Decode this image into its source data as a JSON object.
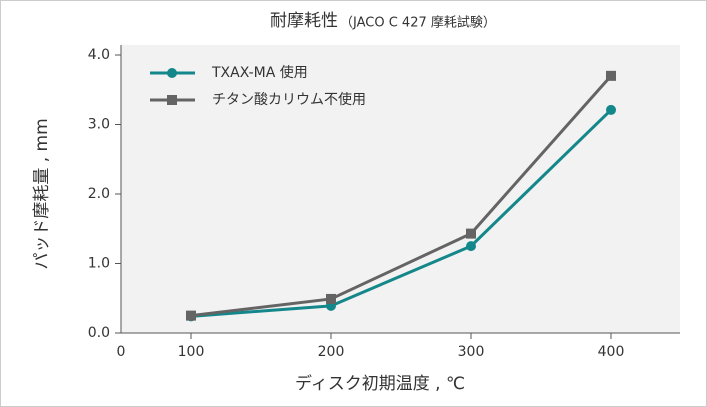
{
  "chart_data": {
    "type": "line",
    "title": "耐摩耗性",
    "subtitle": "（JACO C 427 摩耗試験）",
    "x_label": "ディスク初期温度 , ℃",
    "y_label": "パッド摩耗量 , mm",
    "x_origin_label": "0",
    "categories": [
      "100",
      "200",
      "300",
      "400"
    ],
    "series": [
      {
        "name": "TXAX-MA 使用",
        "color": "#14878a",
        "marker": "circle",
        "values": [
          0.24,
          0.39,
          1.25,
          3.21
        ]
      },
      {
        "name": "チタン酸カリウム不使用",
        "color": "#646464",
        "marker": "square",
        "values": [
          0.25,
          0.49,
          1.43,
          3.7
        ]
      }
    ],
    "ylim": [
      0,
      4
    ],
    "yticks": [
      {
        "value": 0,
        "label": "0.0"
      },
      {
        "value": 1,
        "label": "1.0"
      },
      {
        "value": 2,
        "label": "2.0"
      },
      {
        "value": 3,
        "label": "3.0"
      },
      {
        "value": 4,
        "label": "4.0"
      }
    ],
    "legend": "top-left"
  }
}
